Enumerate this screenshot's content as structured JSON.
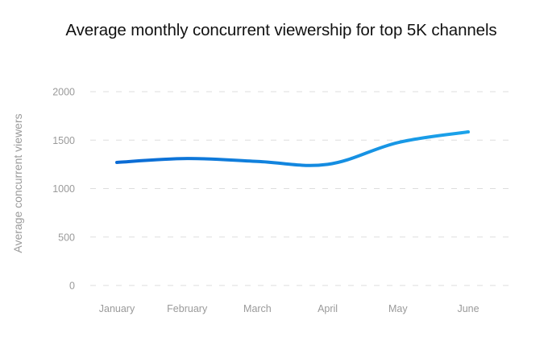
{
  "chart_data": {
    "type": "line",
    "title": "Average monthly concurrent viewership for top 5K channels",
    "xlabel": "",
    "ylabel": "Average concurrent viewers",
    "categories": [
      "January",
      "February",
      "March",
      "April",
      "May",
      "June"
    ],
    "series": [
      {
        "name": "Average concurrent viewers",
        "values": [
          1270,
          1310,
          1280,
          1250,
          1475,
          1585
        ]
      }
    ],
    "ylim": [
      0,
      2000
    ],
    "yticks": [
      0,
      500,
      1000,
      1500,
      2000
    ],
    "ytick_labels": [
      "0",
      "500",
      "1000",
      "1500",
      "2000"
    ],
    "grid": true,
    "legend": "none",
    "colors": {
      "line_start": "#0a6ad4",
      "line_end": "#1ba3ea",
      "grid": "#dddddd",
      "tick_text": "#9a9a9a",
      "title": "#111111"
    }
  }
}
